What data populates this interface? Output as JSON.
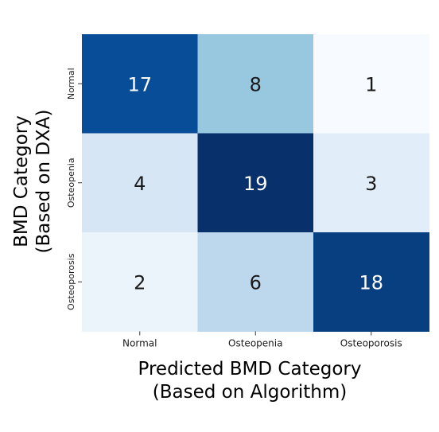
{
  "chart_data": {
    "type": "heatmap",
    "x_categories": [
      "Normal",
      "Osteopenia",
      "Osteoporosis"
    ],
    "y_categories": [
      "Normal",
      "Osteopenia",
      "Osteoporosis"
    ],
    "values": [
      [
        17,
        8,
        1
      ],
      [
        4,
        19,
        3
      ],
      [
        2,
        6,
        18
      ]
    ],
    "xlabel_line1": "Predicted BMD Category",
    "xlabel_line2": "(Based on Algorithm)",
    "ylabel_line1": "BMD Category",
    "ylabel_line2": "(Based on DXA)",
    "colormap": "Blues",
    "vmin": 1,
    "vmax": 19,
    "colors": {
      "low": "#f7fbff",
      "high": "#08306b",
      "text_dark": "#1a1a1a",
      "text_light": "#ffffff"
    }
  }
}
